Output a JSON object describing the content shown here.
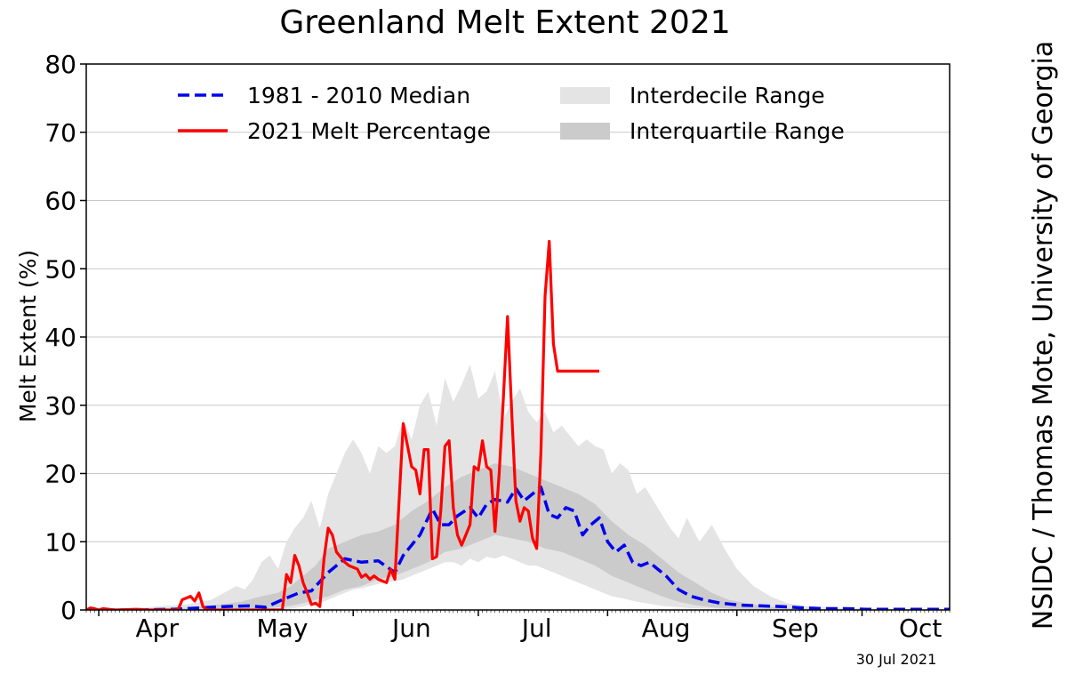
{
  "chart_data": {
    "type": "area",
    "title": "Greenland Melt Extent 2021",
    "ylabel": "Melt Extent (%)",
    "xlabel": "",
    "credit": "NSIDC / Thomas Mote, University of Georgia",
    "date_stamp": "30 Jul 2021",
    "ylim": [
      0,
      80
    ],
    "xlim": [
      88,
      295
    ],
    "x_unit": "day of year",
    "y_ticks": [
      0,
      10,
      20,
      30,
      40,
      50,
      60,
      70,
      80
    ],
    "month_labels": [
      {
        "label": "Apr",
        "day": 105
      },
      {
        "label": "May",
        "day": 135
      },
      {
        "label": "Jun",
        "day": 166
      },
      {
        "label": "Jul",
        "day": 196
      },
      {
        "label": "Aug",
        "day": 227
      },
      {
        "label": "Sep",
        "day": 258
      },
      {
        "label": "Oct",
        "day": 288
      }
    ],
    "month_boundaries": [
      91,
      121,
      152,
      182,
      213,
      244,
      274
    ],
    "grid": true,
    "legend_position": "top",
    "legend": [
      {
        "label": "1981 - 2010 Median",
        "style": "dashed-line",
        "color": "#0000ee"
      },
      {
        "label": "2021 Melt Percentage",
        "style": "solid-line",
        "color": "#ff0000"
      },
      {
        "label": "Interdecile Range",
        "style": "fill",
        "color": "#e4e4e4"
      },
      {
        "label": "Interquartile Range",
        "style": "fill",
        "color": "#cbcbcb"
      }
    ],
    "series": [
      {
        "name": "1981 - 2010 Median",
        "color": "#0000ee",
        "x": [
          88,
          100,
          109,
          115,
          121,
          127,
          131,
          135,
          139,
          142,
          146,
          150,
          154,
          158,
          162,
          164,
          166,
          168,
          171,
          173,
          175,
          177,
          180,
          182,
          184,
          186,
          189,
          191,
          193,
          195,
          197,
          199,
          201,
          203,
          205,
          207,
          209,
          211,
          213,
          215,
          217,
          219,
          221,
          223,
          225,
          227,
          230,
          233,
          236,
          240,
          245,
          250,
          255,
          260,
          265,
          270,
          275,
          280,
          285,
          290,
          295
        ],
        "y": [
          0,
          0,
          0.1,
          0.3,
          0.5,
          0.6,
          0.4,
          1.5,
          2.5,
          2.8,
          5.5,
          7.5,
          7.0,
          7.2,
          5.5,
          8.0,
          9.5,
          11.0,
          14.8,
          12.5,
          12.5,
          13.8,
          15.0,
          13.5,
          15.5,
          16.2,
          15.8,
          17.8,
          16.0,
          17.0,
          18.0,
          14.0,
          13.5,
          15.0,
          14.5,
          11.0,
          12.5,
          13.5,
          10.0,
          8.5,
          9.5,
          7.0,
          6.5,
          7.0,
          6.0,
          5.0,
          3.0,
          2.0,
          1.5,
          1.0,
          0.7,
          0.6,
          0.5,
          0.3,
          0.2,
          0.2,
          0.1,
          0.1,
          0.1,
          0.1,
          0.1
        ]
      },
      {
        "name": "2021 Melt Percentage",
        "color": "#ff0000",
        "x": [
          88,
          89,
          90,
          91,
          92,
          95,
          100,
          103,
          106,
          108,
          110,
          111,
          113,
          114,
          115,
          116,
          117,
          120,
          125,
          131,
          135,
          136,
          137,
          138,
          139,
          140,
          141,
          142,
          143,
          144,
          145,
          146,
          147,
          148,
          150,
          151,
          153,
          154,
          155,
          156,
          157,
          158,
          160,
          161,
          162,
          164,
          166,
          167,
          168,
          169,
          170,
          171,
          172,
          173,
          174,
          175,
          176,
          177,
          178,
          179,
          180,
          181,
          182,
          183,
          184,
          185,
          186,
          187,
          188,
          189,
          190,
          191,
          192,
          193,
          194,
          195,
          196,
          197,
          198,
          199,
          200,
          201,
          202,
          203,
          204,
          205,
          206,
          207,
          208,
          209,
          210,
          211
        ],
        "y": [
          0,
          0.3,
          0.2,
          0,
          0.2,
          0,
          0.1,
          0,
          0,
          0,
          0,
          1.5,
          2.0,
          1.3,
          2.5,
          0.5,
          0,
          0,
          0,
          0,
          0,
          5.2,
          4.0,
          8.0,
          6.5,
          4.0,
          2.5,
          0.8,
          1.0,
          0.5,
          7.5,
          12.0,
          11.0,
          8.5,
          7.0,
          6.5,
          6.0,
          4.8,
          5.2,
          4.5,
          5.0,
          4.5,
          4.0,
          6.0,
          4.5,
          27.3,
          21.0,
          20.5,
          17.0,
          23.5,
          23.5,
          7.5,
          7.8,
          14.5,
          24.0,
          24.8,
          15.0,
          11.0,
          9.5,
          11.0,
          12.5,
          21.0,
          20.5,
          24.8,
          21.0,
          20.5,
          11.5,
          20.0,
          31.0,
          43.0,
          29.0,
          16.0,
          13.0,
          15.0,
          14.5,
          10.5,
          9.0,
          23.0,
          46.0,
          54.0,
          39.0,
          35.0,
          35.0,
          35.0,
          35.0,
          35.0,
          35.0,
          35.0,
          35.0,
          35.0,
          35.0,
          35.0
        ],
        "end_day": 211
      }
    ],
    "interdecile_range": {
      "x": [
        88,
        100,
        112,
        118,
        121,
        124,
        126,
        128,
        130,
        132,
        134,
        136,
        138,
        140,
        142,
        144,
        146,
        148,
        150,
        152,
        154,
        156,
        158,
        160,
        162,
        164,
        166,
        168,
        170,
        172,
        174,
        176,
        178,
        180,
        182,
        184,
        186,
        188,
        190,
        192,
        194,
        196,
        198,
        200,
        202,
        204,
        206,
        208,
        210,
        212,
        214,
        216,
        218,
        220,
        222,
        224,
        226,
        228,
        230,
        232,
        235,
        238,
        241,
        244,
        248,
        252,
        256,
        262,
        270,
        280,
        295
      ],
      "lower": [
        0,
        0,
        0,
        0,
        0,
        0,
        0,
        0,
        0,
        0,
        0,
        0,
        0.3,
        0.5,
        0.8,
        1.0,
        1.5,
        2.0,
        2.5,
        3.0,
        3.2,
        3.5,
        3.8,
        4.0,
        4.2,
        4.5,
        5.0,
        5.5,
        6.0,
        6.5,
        7.0,
        7.0,
        6.5,
        7.5,
        7.0,
        7.8,
        7.5,
        8.0,
        7.5,
        7.0,
        6.5,
        6.5,
        6.0,
        5.5,
        5.0,
        4.5,
        4.0,
        3.5,
        3.0,
        2.5,
        2.0,
        1.8,
        1.5,
        1.2,
        1.0,
        0.8,
        0.6,
        0.5,
        0.4,
        0.3,
        0.2,
        0.2,
        0.1,
        0.1,
        0,
        0,
        0,
        0,
        0,
        0,
        0
      ],
      "upper": [
        0,
        0.3,
        0.8,
        1.5,
        2.5,
        3.5,
        3.0,
        4.5,
        7.0,
        8.0,
        6.0,
        10.0,
        12.0,
        13.5,
        16.0,
        12.0,
        17.0,
        20.0,
        23.0,
        25.0,
        23.0,
        20.0,
        24.0,
        23.0,
        24.0,
        28.0,
        25.0,
        30.0,
        32.0,
        27.0,
        34.0,
        30.5,
        33.0,
        36.0,
        31.0,
        32.0,
        35.0,
        28.0,
        30.5,
        32.5,
        29.0,
        27.5,
        29.0,
        26.0,
        27.0,
        25.5,
        24.0,
        25.0,
        24.0,
        23.5,
        20.0,
        21.5,
        20.5,
        17.0,
        18.0,
        16.0,
        14.0,
        12.0,
        10.5,
        13.5,
        10.0,
        12.5,
        9.0,
        6.0,
        3.5,
        2.0,
        1.0,
        0.5,
        0.3,
        0.2,
        0.1
      ]
    },
    "interquartile_range": {
      "x": [
        88,
        110,
        120,
        125,
        130,
        134,
        137,
        140,
        143,
        146,
        150,
        154,
        158,
        162,
        166,
        170,
        174,
        178,
        182,
        186,
        190,
        194,
        198,
        202,
        206,
        210,
        214,
        218,
        222,
        226,
        230,
        234,
        238,
        242,
        248,
        255,
        265,
        295
      ],
      "lower": [
        0,
        0,
        0,
        0,
        0.2,
        0.4,
        0.6,
        1.0,
        1.5,
        2.0,
        3.0,
        3.5,
        4.5,
        5.0,
        6.0,
        7.0,
        8.5,
        9.0,
        10.0,
        11.0,
        10.5,
        10.0,
        9.0,
        8.5,
        7.5,
        6.5,
        5.0,
        4.0,
        3.0,
        2.0,
        1.2,
        0.7,
        0.4,
        0.2,
        0.1,
        0,
        0,
        0
      ],
      "upper": [
        0,
        0.2,
        0.8,
        1.2,
        2.0,
        2.5,
        3.5,
        5.0,
        6.5,
        9.0,
        10.0,
        11.0,
        11.5,
        12.5,
        14.5,
        16.0,
        18.0,
        19.5,
        20.5,
        21.5,
        21.0,
        20.0,
        19.0,
        18.0,
        17.0,
        15.5,
        13.0,
        11.0,
        9.5,
        7.5,
        5.5,
        4.0,
        2.5,
        1.5,
        0.8,
        0.3,
        0.1,
        0
      ]
    }
  }
}
